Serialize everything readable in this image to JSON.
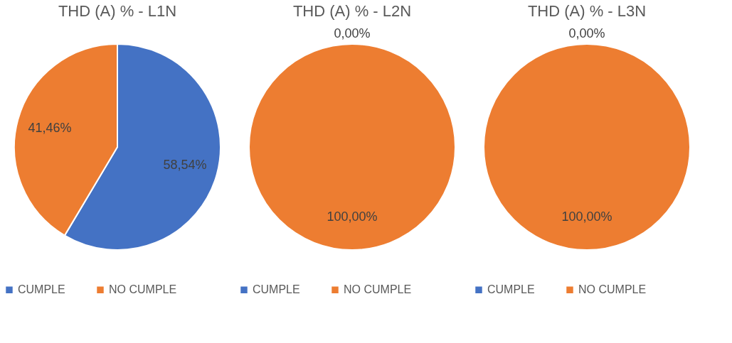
{
  "chart_data": [
    {
      "type": "pie",
      "title": "THD (A) % - L1N",
      "categories": [
        "CUMPLE",
        "NO CUMPLE"
      ],
      "values": [
        58.54,
        41.46
      ],
      "colors": [
        "#4472c4",
        "#ed7d31"
      ],
      "value_labels": [
        "58,54%",
        "41,46%"
      ],
      "legend": "bottom"
    },
    {
      "type": "pie",
      "title": "THD (A) % - L2N",
      "categories": [
        "CUMPLE",
        "NO CUMPLE"
      ],
      "values": [
        0,
        100
      ],
      "colors": [
        "#4472c4",
        "#ed7d31"
      ],
      "value_labels": [
        "0,00%",
        "100,00%"
      ],
      "legend": "bottom"
    },
    {
      "type": "pie",
      "title": "THD (A) % - L3N",
      "categories": [
        "CUMPLE",
        "NO CUMPLE"
      ],
      "values": [
        0,
        100
      ],
      "colors": [
        "#4472c4",
        "#ed7d31"
      ],
      "value_labels": [
        "0,00%",
        "100,00%"
      ],
      "legend": "bottom"
    }
  ]
}
